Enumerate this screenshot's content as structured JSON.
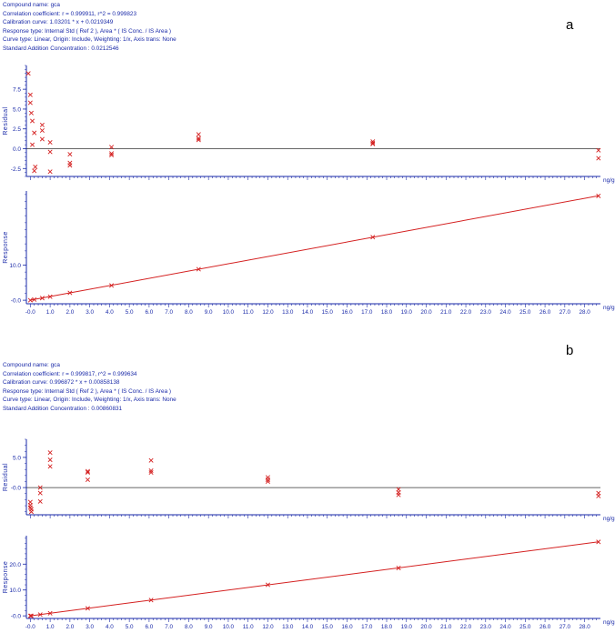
{
  "colors": {
    "text": "#1a2aa8",
    "axis": "#1a2aa8",
    "data": "#d42020",
    "zero_line": "#333333"
  },
  "panels": [
    {
      "label": "a",
      "info": {
        "compound_name": "Compound name: gca",
        "correlation": "Correlation coefficient: r = 0.999911, r^2 = 0.999823",
        "calibration": "Calibration curve: 1.03201 * x + 0.0219349",
        "response_type": "Response type: Internal Std ( Ref 2 ), Area * ( IS Conc. / IS Area )",
        "curve_type": "Curve type: Linear, Origin: Include, Weighting: 1/x, Axis trans: None",
        "std_add": "Standard Addition Concentration : 0.0212546"
      },
      "residual_ylabel": "Residual",
      "response_ylabel": "Response",
      "unit": "ng/g",
      "x_ticks": [
        "-0.0",
        "1.0",
        "2.0",
        "3.0",
        "4.0",
        "5.0",
        "6.0",
        "7.0",
        "8.0",
        "9.0",
        "10.0",
        "11.0",
        "12.0",
        "13.0",
        "14.0",
        "15.0",
        "16.0",
        "17.0",
        "18.0",
        "19.0",
        "20.0",
        "21.0",
        "22.0",
        "23.0",
        "24.0",
        "25.0",
        "26.0",
        "27.0",
        "28.0"
      ],
      "residual_ticks": [
        "7.5",
        "5.0",
        "2.5",
        "0.0",
        "-2.5"
      ],
      "response_ticks": [
        "-0.0",
        "10.0"
      ]
    },
    {
      "label": "b",
      "info": {
        "compound_name": "Compound name: gca",
        "correlation": "Correlation coefficient: r = 0.999817, r^2 = 0.999634",
        "calibration": "Calibration curve: 0.996872 * x + 0.00858138",
        "response_type": "Response type: Internal Std ( Ref 2 ), Area * ( IS Conc. / IS Area )",
        "curve_type": "Curve type: Linear, Origin: Include, Weighting: 1/x, Axis trans: None",
        "std_add": "Standard Addition Concentration : 0.00860831"
      },
      "residual_ylabel": "Residual",
      "response_ylabel": "Response",
      "unit": "ng/g",
      "x_ticks": [
        "-0.0",
        "1.0",
        "2.0",
        "3.0",
        "4.0",
        "5.0",
        "6.0",
        "7.0",
        "8.0",
        "9.0",
        "10.0",
        "11.0",
        "12.0",
        "13.0",
        "14.0",
        "15.0",
        "16.0",
        "17.0",
        "18.0",
        "19.0",
        "20.0",
        "21.0",
        "22.0",
        "23.0",
        "24.0",
        "25.0",
        "26.0",
        "27.0",
        "28.0"
      ],
      "residual_ticks": [
        "5.0",
        "-0.0"
      ],
      "response_ticks": [
        "20.0",
        "10.0",
        "-0.0"
      ]
    }
  ],
  "chart_data": [
    {
      "type": "scatter",
      "panel": "a",
      "role": "residual",
      "ylabel": "Residual",
      "xlabel": "ng/g",
      "xlim": [
        -0.2,
        28.8
      ],
      "ylim": [
        -3.5,
        10.5
      ],
      "points": [
        [
          -0.1,
          9.5
        ],
        [
          0.0,
          6.8
        ],
        [
          0.0,
          5.8
        ],
        [
          0.05,
          4.5
        ],
        [
          0.1,
          3.5
        ],
        [
          0.2,
          2.0
        ],
        [
          0.25,
          -2.3
        ],
        [
          0.2,
          -2.8
        ],
        [
          0.1,
          0.5
        ],
        [
          0.6,
          3.0
        ],
        [
          0.6,
          2.3
        ],
        [
          0.6,
          1.2
        ],
        [
          1.0,
          0.8
        ],
        [
          1.0,
          -0.4
        ],
        [
          1.0,
          -2.9
        ],
        [
          2.0,
          -0.7
        ],
        [
          2.0,
          -1.8
        ],
        [
          2.0,
          -2.1
        ],
        [
          4.1,
          0.2
        ],
        [
          4.1,
          -0.6
        ],
        [
          4.1,
          -0.8
        ],
        [
          8.5,
          1.8
        ],
        [
          8.5,
          1.3
        ],
        [
          8.5,
          1.1
        ],
        [
          17.3,
          0.9
        ],
        [
          17.3,
          0.6
        ],
        [
          17.3,
          0.7
        ],
        [
          28.7,
          -0.2
        ],
        [
          28.7,
          -1.2
        ]
      ]
    },
    {
      "type": "scatter",
      "panel": "a",
      "role": "response",
      "ylabel": "Response",
      "xlabel": "ng/g",
      "xlim": [
        -0.2,
        28.8
      ],
      "ylim": [
        -1,
        31
      ],
      "points": [
        [
          0.0,
          0.0
        ],
        [
          0.2,
          0.2
        ],
        [
          0.6,
          0.6
        ],
        [
          1.0,
          1.0
        ],
        [
          2.0,
          2.1
        ],
        [
          4.1,
          4.2
        ],
        [
          8.5,
          8.8
        ],
        [
          17.3,
          17.9
        ],
        [
          28.7,
          29.6
        ]
      ],
      "fit": {
        "slope": 1.03201,
        "intercept": 0.0219349
      }
    },
    {
      "type": "scatter",
      "panel": "b",
      "role": "residual",
      "ylabel": "Residual",
      "xlabel": "ng/g",
      "xlim": [
        -0.2,
        28.8
      ],
      "ylim": [
        -4.5,
        8
      ],
      "points": [
        [
          0.0,
          -2.4
        ],
        [
          0.0,
          -2.9
        ],
        [
          0.0,
          -3.3
        ],
        [
          0.05,
          -3.6
        ],
        [
          0.05,
          -4.0
        ],
        [
          0.5,
          0.0
        ],
        [
          0.5,
          -0.9
        ],
        [
          0.5,
          -2.3
        ],
        [
          1.0,
          5.8
        ],
        [
          1.0,
          4.6
        ],
        [
          1.0,
          3.5
        ],
        [
          2.9,
          2.7
        ],
        [
          2.9,
          2.5
        ],
        [
          2.9,
          1.3
        ],
        [
          6.1,
          4.5
        ],
        [
          6.1,
          2.8
        ],
        [
          6.1,
          2.5
        ],
        [
          12.0,
          1.7
        ],
        [
          12.0,
          1.3
        ],
        [
          12.0,
          1.0
        ],
        [
          18.6,
          -0.3
        ],
        [
          18.6,
          -0.8
        ],
        [
          18.6,
          -1.2
        ],
        [
          28.7,
          -0.9
        ],
        [
          28.7,
          -1.4
        ]
      ]
    },
    {
      "type": "scatter",
      "panel": "b",
      "role": "response",
      "ylabel": "Response",
      "xlabel": "ng/g",
      "xlim": [
        -0.2,
        28.8
      ],
      "ylim": [
        -1,
        31
      ],
      "points": [
        [
          0.0,
          0.0
        ],
        [
          0.05,
          0.0
        ],
        [
          0.5,
          0.5
        ],
        [
          1.0,
          1.0
        ],
        [
          2.9,
          2.9
        ],
        [
          6.1,
          6.1
        ],
        [
          12.0,
          12.0
        ],
        [
          18.6,
          18.5
        ],
        [
          28.7,
          28.6
        ]
      ],
      "fit": {
        "slope": 0.996872,
        "intercept": 0.00858138
      }
    }
  ]
}
